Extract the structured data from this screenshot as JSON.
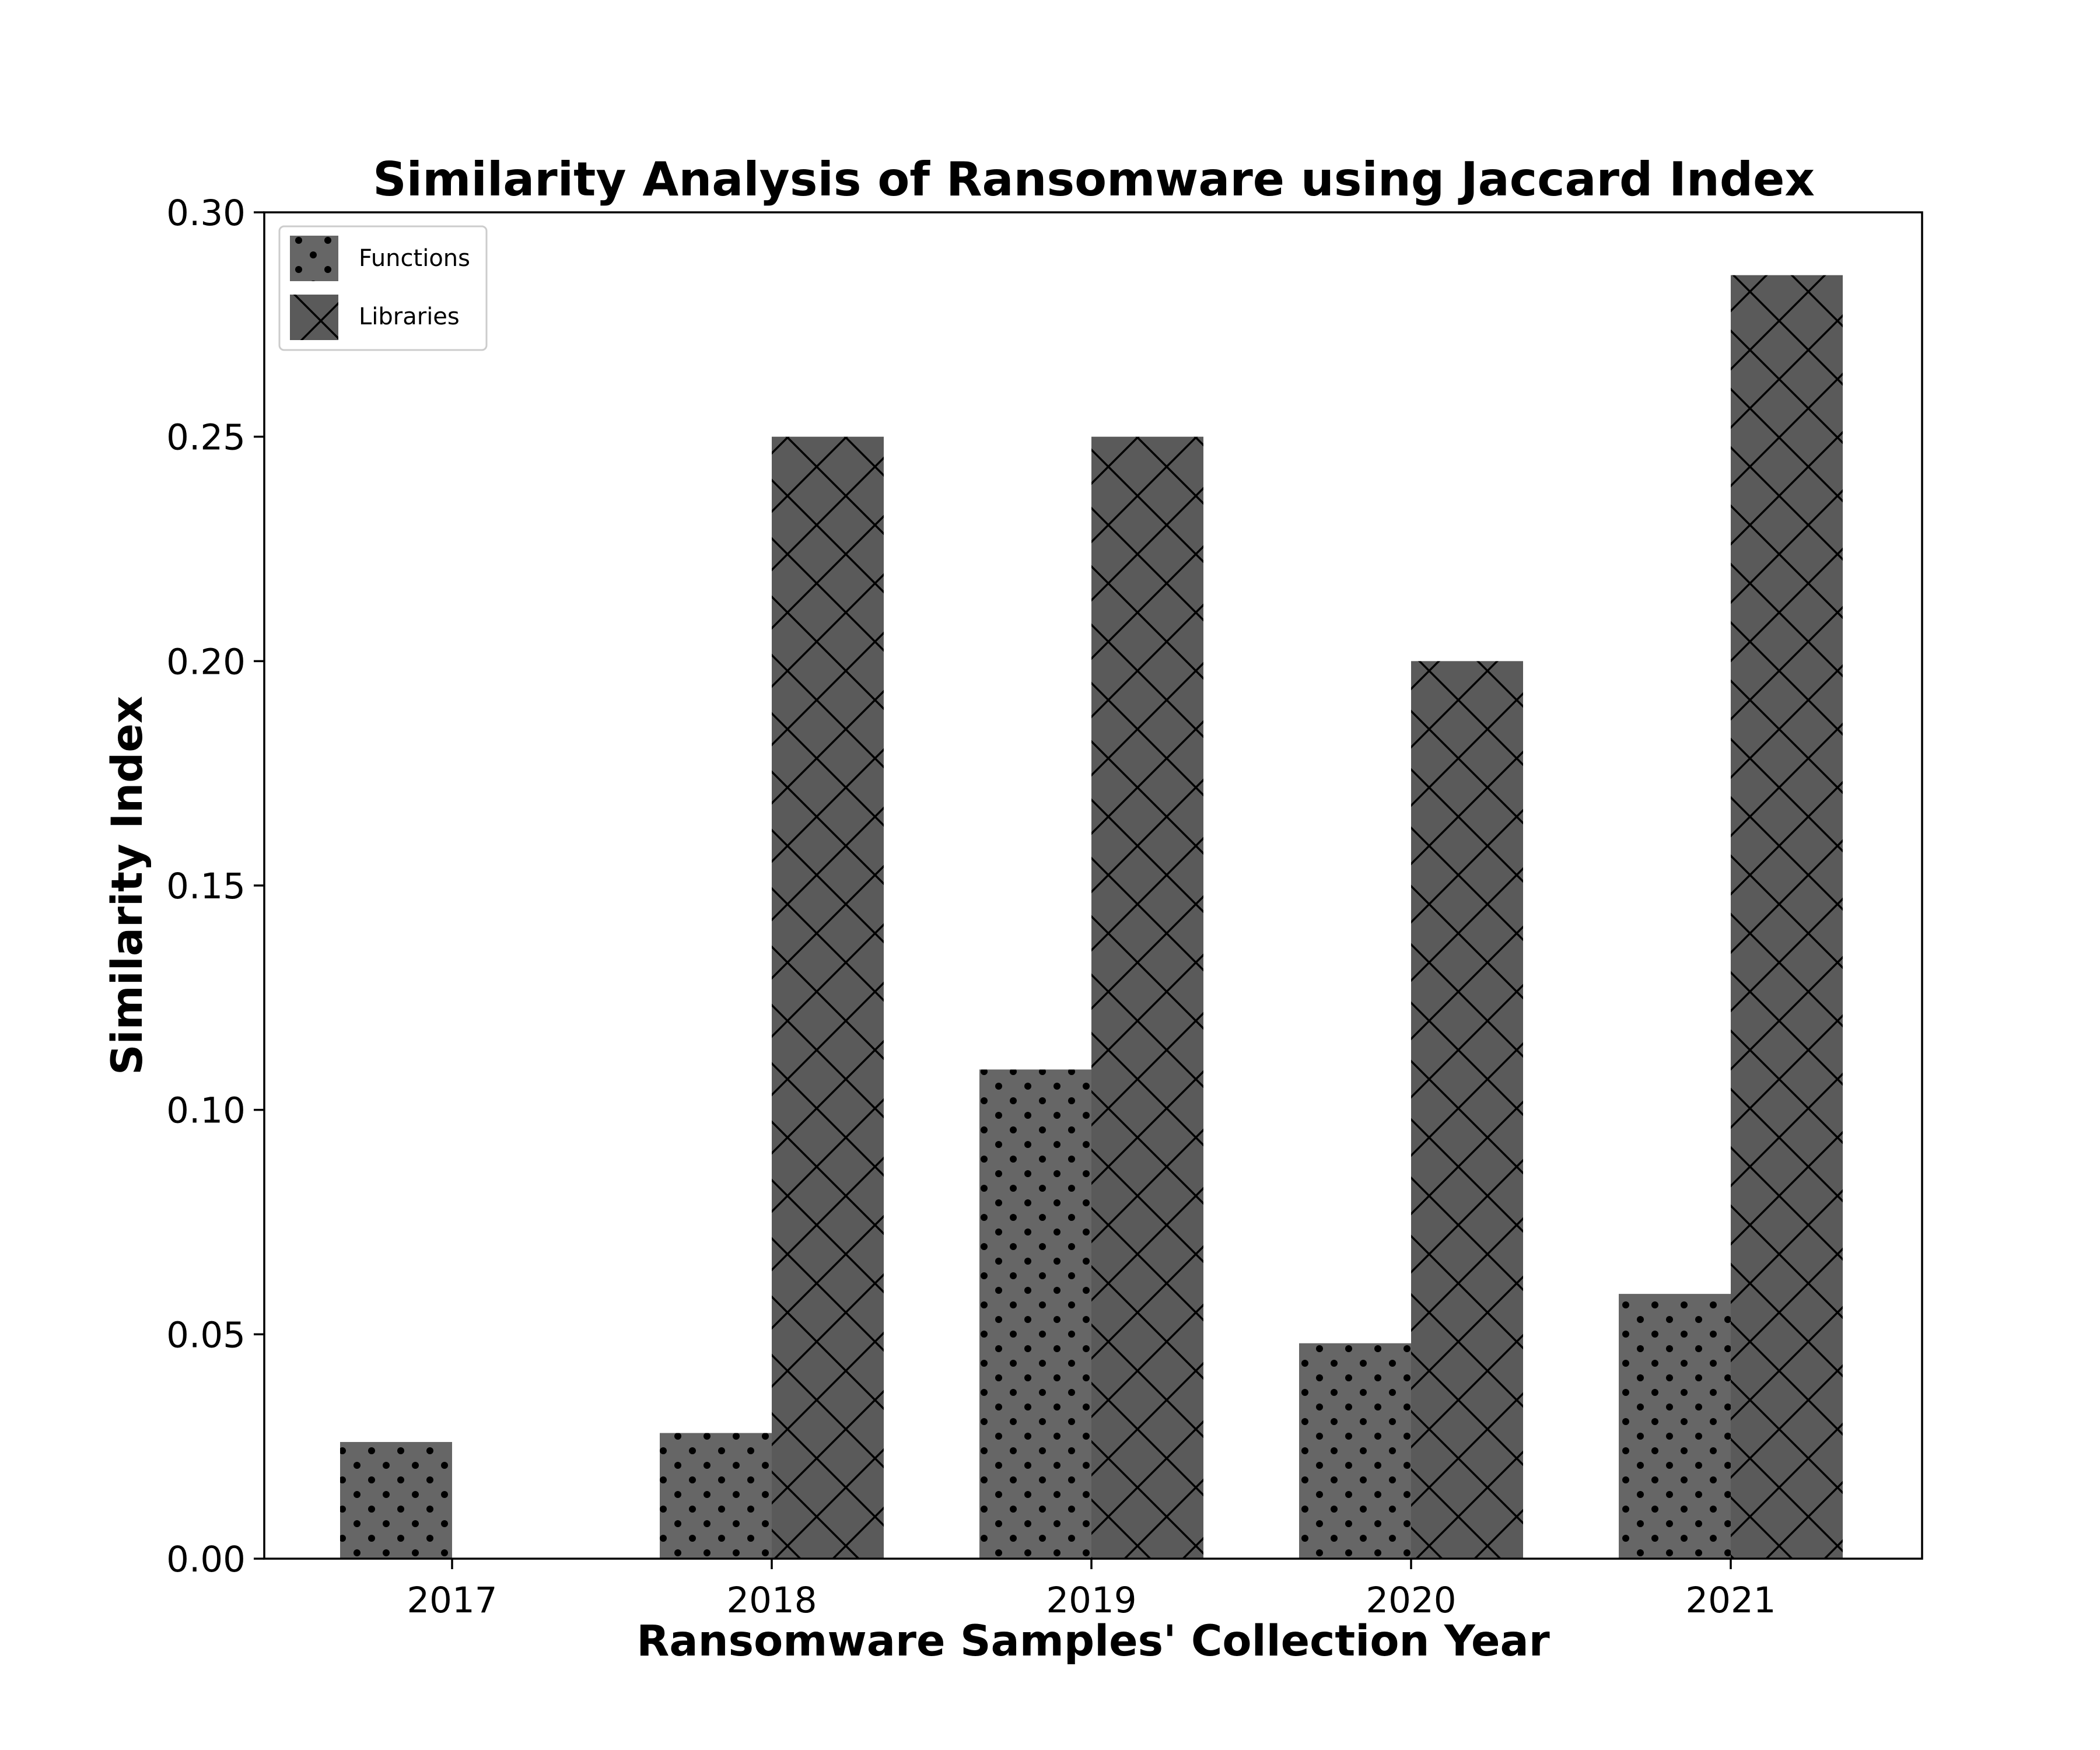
{
  "chart_data": {
    "type": "bar",
    "title": "Similarity Analysis of Ransomware using Jaccard Index",
    "xlabel": "Ransomware Samples' Collection Year",
    "ylabel": "Similarity Index",
    "categories": [
      "2017",
      "2018",
      "2019",
      "2020",
      "2021"
    ],
    "series": [
      {
        "name": "Functions",
        "values": [
          0.026,
          0.028,
          0.109,
          0.048,
          0.059
        ],
        "color": "#666666",
        "pattern": "dots"
      },
      {
        "name": "Libraries",
        "values": [
          0.0,
          0.25,
          0.25,
          0.2,
          0.286
        ],
        "color": "#5a5a5a",
        "pattern": "crosshatch"
      }
    ],
    "yticks": [
      "0.00",
      "0.05",
      "0.10",
      "0.15",
      "0.20",
      "0.25",
      "0.30"
    ],
    "ylim": [
      0,
      0.3
    ],
    "grid": false,
    "legend_position": "top-left"
  }
}
